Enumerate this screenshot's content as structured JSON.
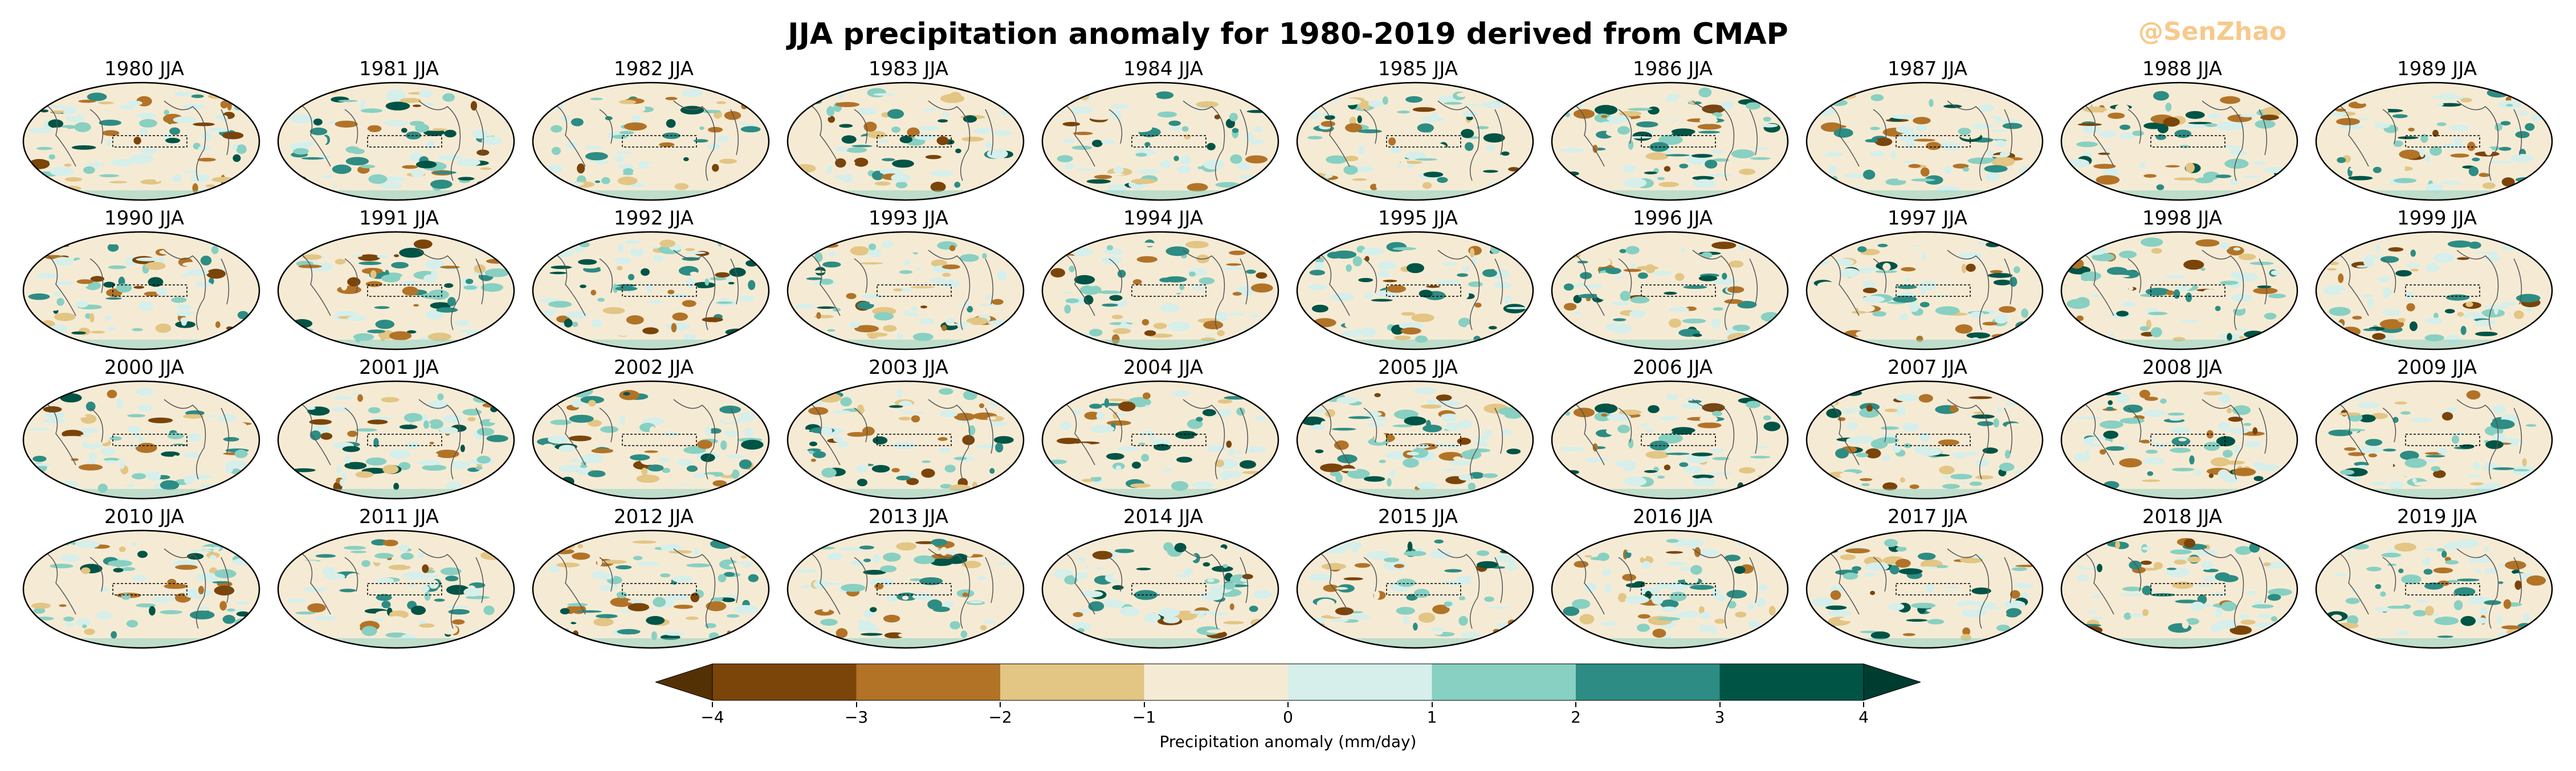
{
  "title": "JJA precipitation anomaly for 1980-2019 derived from CMAP",
  "watermark": "@SenZhao",
  "panels": [
    "1980 JJA",
    "1981 JJA",
    "1982 JJA",
    "1983 JJA",
    "1984 JJA",
    "1985 JJA",
    "1986 JJA",
    "1987 JJA",
    "1988 JJA",
    "1989 JJA",
    "1990 JJA",
    "1991 JJA",
    "1992 JJA",
    "1993 JJA",
    "1994 JJA",
    "1995 JJA",
    "1996 JJA",
    "1997 JJA",
    "1998 JJA",
    "1999 JJA",
    "2000 JJA",
    "2001 JJA",
    "2002 JJA",
    "2003 JJA",
    "2004 JJA",
    "2005 JJA",
    "2006 JJA",
    "2007 JJA",
    "2008 JJA",
    "2009 JJA",
    "2010 JJA",
    "2011 JJA",
    "2012 JJA",
    "2013 JJA",
    "2014 JJA",
    "2015 JJA",
    "2016 JJA",
    "2017 JJA",
    "2018 JJA",
    "2019 JJA"
  ],
  "colorbar": {
    "label": "Precipitation anomaly (mm/day)",
    "ticks": [
      "−4",
      "−3",
      "−2",
      "−1",
      "0",
      "1",
      "2",
      "3",
      "4"
    ],
    "colors": [
      "#7b4409",
      "#b27327",
      "#e3c584",
      "#f5ebd5",
      "#d6efeb",
      "#88d0c2",
      "#2d8c83",
      "#005446"
    ],
    "extend_low_color": "#543005",
    "extend_high_color": "#003c30"
  }
}
